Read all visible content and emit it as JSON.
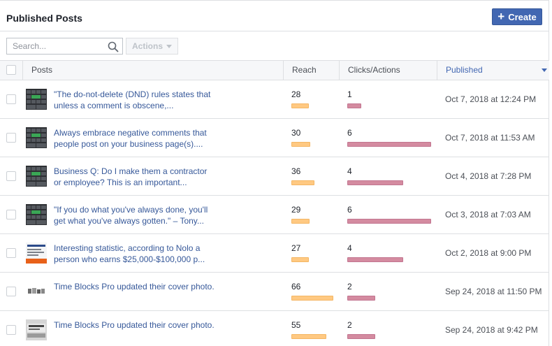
{
  "header": {
    "title": "Published Posts",
    "create_label": "Create"
  },
  "toolbar": {
    "search_placeholder": "Search...",
    "actions_label": "Actions"
  },
  "columns": {
    "posts": "Posts",
    "reach": "Reach",
    "clicks": "Clicks/Actions",
    "published": "Published"
  },
  "rows": [
    {
      "text": "\"The do-not-delete (DND) rules states that unless a comment is obscene,...",
      "reach": "28",
      "clicks": "1",
      "published": "Oct 7, 2018 at 12:24 PM",
      "reach_value": 28,
      "clicks_value": 1,
      "thumb": "keyboard"
    },
    {
      "text": "Always embrace negative comments that people post on your business page(s)....",
      "reach": "30",
      "clicks": "6",
      "published": "Oct 7, 2018 at 11:53 AM",
      "reach_value": 30,
      "clicks_value": 6,
      "thumb": "keyboard"
    },
    {
      "text": "Business Q: Do I make them a contractor or employee? This is an important...",
      "reach": "36",
      "clicks": "4",
      "published": "Oct 4, 2018 at 7:28 PM",
      "reach_value": 36,
      "clicks_value": 4,
      "thumb": "keyboard"
    },
    {
      "text": "\"If you do what you've always done, you'll get what you've always gotten.\" – Tony...",
      "reach": "29",
      "clicks": "6",
      "published": "Oct 3, 2018 at 7:03 AM",
      "reach_value": 29,
      "clicks_value": 6,
      "thumb": "keyboard"
    },
    {
      "text": "Interesting statistic, according to Nolo a person who earns $25,000-$100,000 p...",
      "reach": "27",
      "clicks": "4",
      "published": "Oct 2, 2018 at 9:00 PM",
      "reach_value": 27,
      "clicks_value": 4,
      "thumb": "document"
    },
    {
      "text": "Time Blocks Pro updated their cover photo.",
      "reach": "66",
      "clicks": "2",
      "published": "Sep 24, 2018 at 11:50 PM",
      "reach_value": 66,
      "clicks_value": 2,
      "thumb": "cover"
    },
    {
      "text": "Time Blocks Pro updated their cover photo.",
      "reach": "55",
      "clicks": "2",
      "published": "Sep 24, 2018 at 9:42 PM",
      "reach_value": 55,
      "clicks_value": 2,
      "thumb": "cover-text"
    }
  ],
  "colors": {
    "link": "#365899",
    "button": "#4267b2",
    "reach_bar": "#ffc982",
    "clicks_bar": "#d48ba0"
  }
}
